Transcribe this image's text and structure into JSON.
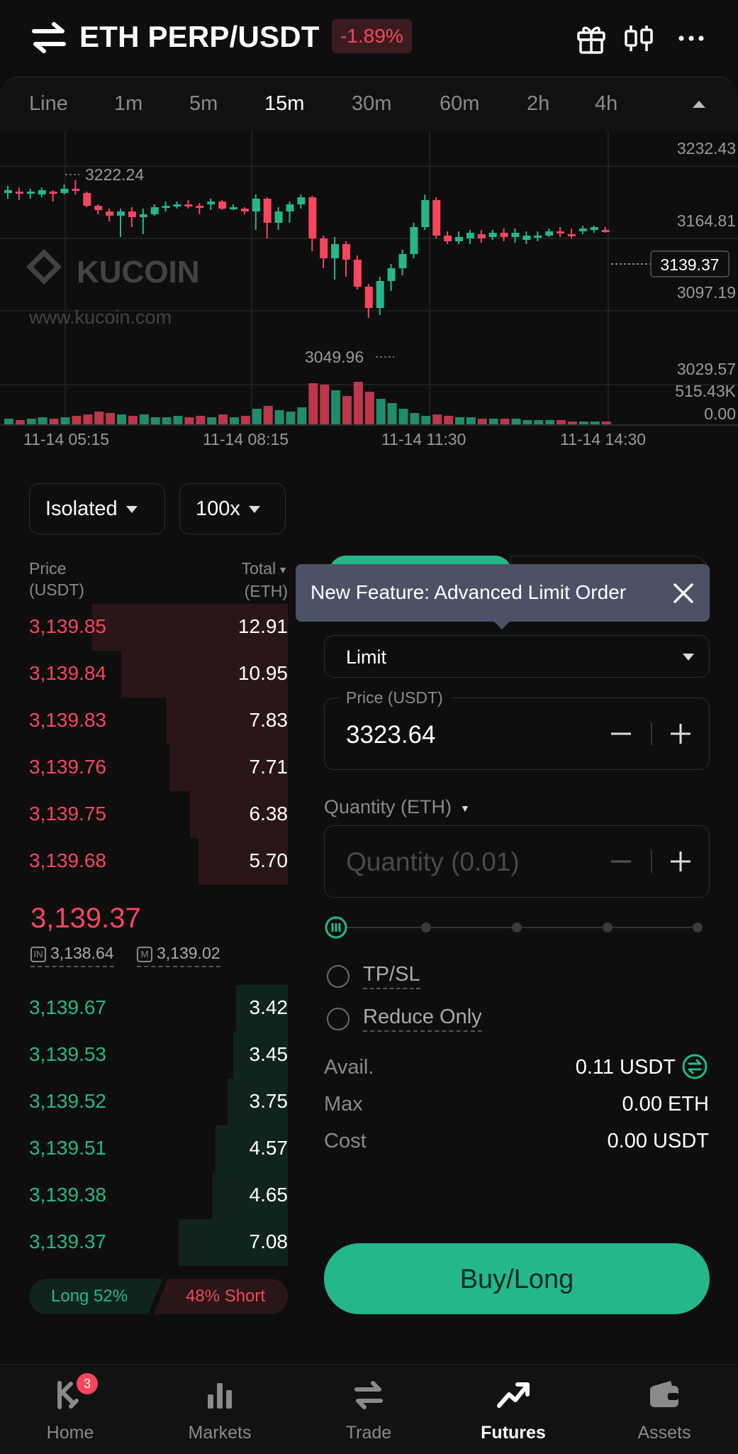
{
  "header": {
    "pair": "ETH PERP/USDT",
    "change": "-1.89%"
  },
  "timeframes": [
    "Line",
    "1m",
    "5m",
    "15m",
    "30m",
    "60m",
    "2h",
    "4h"
  ],
  "active_timeframe": "15m",
  "chart": {
    "price_ticks": [
      "3232.43",
      "3164.81",
      "3097.19",
      "3029.57"
    ],
    "current_price_tag": "3139.37",
    "high_marker": "3222.24",
    "low_marker": "3049.96",
    "volume_ticks": [
      "515.43K",
      "0.00"
    ],
    "time_ticks": [
      "11-14 05:15",
      "11-14 08:15",
      "11-14 11:30",
      "11-14 14:30"
    ],
    "watermark_brand": "KUCOIN",
    "watermark_url": "www.kucoin.com",
    "up_color": "#25b78a",
    "down_color": "#f6465d"
  },
  "margin": {
    "mode": "Isolated",
    "leverage": "100x"
  },
  "orderbook": {
    "price_header": "Price",
    "price_unit": "(USDT)",
    "total_header": "Total",
    "total_unit": "(ETH)",
    "asks": [
      {
        "price": "3,139.85",
        "total": "12.91",
        "depth": 0.68
      },
      {
        "price": "3,139.84",
        "total": "10.95",
        "depth": 0.58
      },
      {
        "price": "3,139.83",
        "total": "7.83",
        "depth": 0.42
      },
      {
        "price": "3,139.76",
        "total": "7.71",
        "depth": 0.41
      },
      {
        "price": "3,139.75",
        "total": "6.38",
        "depth": 0.34
      },
      {
        "price": "3,139.68",
        "total": "5.70",
        "depth": 0.31
      }
    ],
    "last_price": "3,139.37",
    "index_price": "3,138.64",
    "mark_price": "3,139.02",
    "bids": [
      {
        "price": "3,139.67",
        "total": "3.42",
        "depth": 0.18
      },
      {
        "price": "3,139.53",
        "total": "3.45",
        "depth": 0.19
      },
      {
        "price": "3,139.52",
        "total": "3.75",
        "depth": 0.21
      },
      {
        "price": "3,139.51",
        "total": "4.57",
        "depth": 0.25
      },
      {
        "price": "3,139.38",
        "total": "4.65",
        "depth": 0.26
      },
      {
        "price": "3,139.37",
        "total": "7.08",
        "depth": 0.38
      }
    ],
    "long_label": "Long 52%",
    "short_label": "48% Short"
  },
  "order_form": {
    "tooltip": "New Feature: Advanced Limit Order",
    "order_type": "Limit",
    "price_label": "Price (USDT)",
    "price_value": "3323.64",
    "quantity_label": "Quantity (ETH)",
    "quantity_placeholder": "Quantity (0.01)",
    "tpsl_label": "TP/SL",
    "reduce_only_label": "Reduce Only",
    "avail_label": "Avail.",
    "avail_value": "0.11 USDT",
    "max_label": "Max",
    "max_value": "0.00 ETH",
    "cost_label": "Cost",
    "cost_value": "0.00 USDT",
    "buy_label": "Buy/Long"
  },
  "nav": {
    "items": [
      {
        "label": "Home",
        "icon": "kucoin-home-icon",
        "badge": "3"
      },
      {
        "label": "Markets",
        "icon": "bar-chart-icon"
      },
      {
        "label": "Trade",
        "icon": "swap-arrows-icon"
      },
      {
        "label": "Futures",
        "icon": "trend-up-icon",
        "active": true
      },
      {
        "label": "Assets",
        "icon": "wallet-icon"
      }
    ]
  }
}
